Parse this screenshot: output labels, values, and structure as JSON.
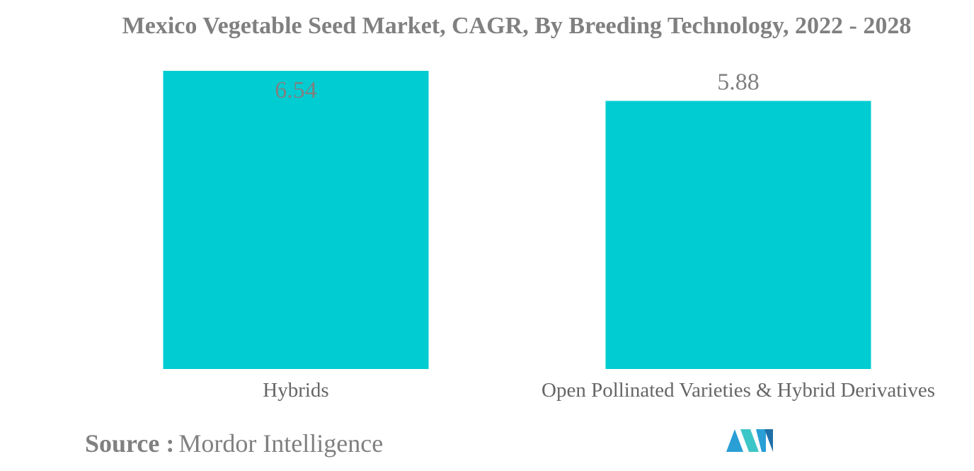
{
  "chart_data": {
    "type": "bar",
    "title": "Mexico Vegetable Seed Market, CAGR, By Breeding Technology, 2022 - 2028",
    "categories": [
      "Hybrids",
      "Open Pollinated Varieties & Hybrid Derivatives"
    ],
    "values": [
      6.54,
      5.88
    ],
    "data_labels": [
      "6.54",
      "5.88"
    ],
    "xlabel": "",
    "ylabel": "",
    "ylim": [
      0,
      6.54
    ],
    "grid": false,
    "legend": "none",
    "bar_color": "#00ccd1",
    "label_color": "#808080"
  },
  "source": {
    "label": "Source :",
    "value": "Mordor Intelligence"
  },
  "logo": {
    "icon": "mordor-intelligence-logo-icon",
    "colors": [
      "#2a9fd6",
      "#3dc6c8",
      "#1f6fa8"
    ]
  }
}
